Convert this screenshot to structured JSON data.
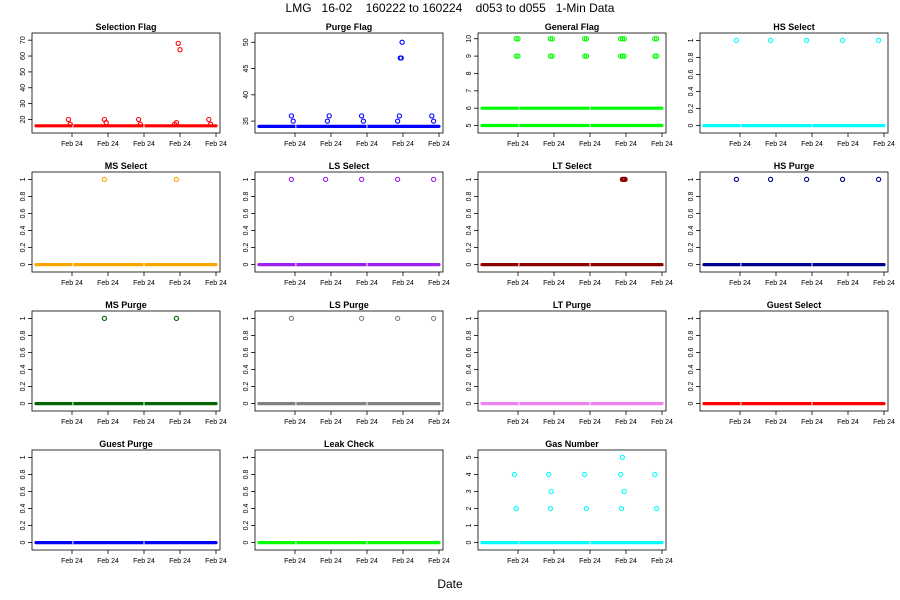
{
  "figure": {
    "title": "LMG   16-02    160222 to 160224    d053 to d055   1-Min Data",
    "xlabel": "Date"
  },
  "chart_data": [
    {
      "type": "scatter",
      "title": "Selection Flag",
      "color": "#ff0000",
      "ylim": [
        14,
        72
      ],
      "yticks": [
        20,
        30,
        40,
        50,
        60,
        70
      ],
      "xtick_label": "Feb 24",
      "xticks": [
        0.2,
        0.4,
        0.6,
        0.8,
        1.0
      ],
      "base": 16,
      "points": [
        [
          0.18,
          20
        ],
        [
          0.19,
          17
        ],
        [
          0.38,
          20
        ],
        [
          0.39,
          18
        ],
        [
          0.57,
          20
        ],
        [
          0.58,
          17
        ],
        [
          0.77,
          17
        ],
        [
          0.78,
          18
        ],
        [
          0.79,
          68
        ],
        [
          0.8,
          64
        ],
        [
          0.96,
          20
        ],
        [
          0.97,
          17
        ]
      ]
    },
    {
      "type": "scatter",
      "title": "Purge Flag",
      "color": "#0000ff",
      "ylim": [
        33.5,
        51
      ],
      "yticks": [
        35,
        40,
        45,
        50
      ],
      "xtick_label": "Feb 24",
      "xticks": [
        0.2,
        0.4,
        0.6,
        0.8,
        1.0
      ],
      "base": 34,
      "points": [
        [
          0.18,
          36
        ],
        [
          0.19,
          35
        ],
        [
          0.38,
          35
        ],
        [
          0.39,
          36
        ],
        [
          0.57,
          36
        ],
        [
          0.58,
          35
        ],
        [
          0.77,
          35
        ],
        [
          0.78,
          36
        ],
        [
          0.785,
          47
        ],
        [
          0.79,
          47
        ],
        [
          0.795,
          50
        ],
        [
          0.96,
          36
        ],
        [
          0.97,
          35
        ]
      ]
    },
    {
      "type": "scatter",
      "title": "General Flag",
      "color": "#00ff00",
      "ylim": [
        4.8,
        10.1
      ],
      "yticks": [
        5,
        6,
        7,
        8,
        9,
        10
      ],
      "xtick_label": "Feb 24",
      "xticks": [
        0.2,
        0.4,
        0.6,
        0.8,
        1.0
      ],
      "base": 5,
      "base2": 6,
      "points": [
        [
          0.19,
          9
        ],
        [
          0.2,
          9
        ],
        [
          0.19,
          10
        ],
        [
          0.2,
          10
        ],
        [
          0.38,
          9
        ],
        [
          0.39,
          9
        ],
        [
          0.38,
          10
        ],
        [
          0.39,
          10
        ],
        [
          0.57,
          9
        ],
        [
          0.58,
          9
        ],
        [
          0.57,
          10
        ],
        [
          0.58,
          10
        ],
        [
          0.77,
          9
        ],
        [
          0.78,
          9
        ],
        [
          0.79,
          9
        ],
        [
          0.77,
          10
        ],
        [
          0.78,
          10
        ],
        [
          0.79,
          10
        ],
        [
          0.96,
          9
        ],
        [
          0.97,
          9
        ],
        [
          0.96,
          10
        ],
        [
          0.97,
          10
        ]
      ]
    },
    {
      "type": "scatter",
      "title": "HS Select",
      "color": "#00ffff",
      "ylim": [
        -0.04,
        1.04
      ],
      "yticks": [
        0,
        0.2,
        0.4,
        0.6,
        0.8,
        1.0
      ],
      "xtick_label": "Feb 24",
      "xticks": [
        0.2,
        0.4,
        0.6,
        0.8,
        1.0
      ],
      "base": 0,
      "points": [
        [
          0.18,
          1
        ],
        [
          0.37,
          1
        ],
        [
          0.57,
          1
        ],
        [
          0.77,
          1
        ],
        [
          0.97,
          1
        ]
      ]
    },
    {
      "type": "scatter",
      "title": "MS Select",
      "color": "#ffa500",
      "ylim": [
        -0.04,
        1.04
      ],
      "yticks": [
        0,
        0.2,
        0.4,
        0.6,
        0.8,
        1.0
      ],
      "xtick_label": "Feb 24",
      "xticks": [
        0.2,
        0.4,
        0.6,
        0.8,
        1.0
      ],
      "base": 0,
      "points": [
        [
          0.38,
          1
        ],
        [
          0.78,
          1
        ]
      ]
    },
    {
      "type": "scatter",
      "title": "LS Select",
      "color": "#a020f0",
      "ylim": [
        -0.04,
        1.04
      ],
      "yticks": [
        0,
        0.2,
        0.4,
        0.6,
        0.8,
        1.0
      ],
      "xtick_label": "Feb 24",
      "xticks": [
        0.2,
        0.4,
        0.6,
        0.8,
        1.0
      ],
      "base": 0,
      "points": [
        [
          0.18,
          1
        ],
        [
          0.37,
          1
        ],
        [
          0.57,
          1
        ],
        [
          0.77,
          1
        ],
        [
          0.97,
          1
        ]
      ]
    },
    {
      "type": "scatter",
      "title": "LT Select",
      "color": "#8b0000",
      "ylim": [
        -0.04,
        1.04
      ],
      "yticks": [
        0,
        0.2,
        0.4,
        0.6,
        0.8,
        1.0
      ],
      "xtick_label": "Feb 24",
      "xticks": [
        0.2,
        0.4,
        0.6,
        0.8,
        1.0
      ],
      "base": 0,
      "points": [
        [
          0.78,
          1
        ],
        [
          0.785,
          1
        ],
        [
          0.79,
          1
        ],
        [
          0.795,
          1
        ]
      ]
    },
    {
      "type": "scatter",
      "title": "HS Purge",
      "color": "#00008b",
      "ylim": [
        -0.04,
        1.04
      ],
      "yticks": [
        0,
        0.2,
        0.4,
        0.6,
        0.8,
        1.0
      ],
      "xtick_label": "Feb 24",
      "xticks": [
        0.2,
        0.4,
        0.6,
        0.8,
        1.0
      ],
      "base": 0,
      "points": [
        [
          0.18,
          1
        ],
        [
          0.37,
          1
        ],
        [
          0.57,
          1
        ],
        [
          0.77,
          1
        ],
        [
          0.97,
          1
        ]
      ]
    },
    {
      "type": "scatter",
      "title": "MS Purge",
      "color": "#006400",
      "ylim": [
        -0.04,
        1.04
      ],
      "yticks": [
        0,
        0.2,
        0.4,
        0.6,
        0.8,
        1.0
      ],
      "xtick_label": "Feb 24",
      "xticks": [
        0.2,
        0.4,
        0.6,
        0.8,
        1.0
      ],
      "base": 0,
      "points": [
        [
          0.38,
          1
        ],
        [
          0.78,
          1
        ]
      ]
    },
    {
      "type": "scatter",
      "title": "LS Purge",
      "color": "#808080",
      "ylim": [
        -0.04,
        1.04
      ],
      "yticks": [
        0,
        0.2,
        0.4,
        0.6,
        0.8,
        1.0
      ],
      "xtick_label": "Feb 24",
      "xticks": [
        0.2,
        0.4,
        0.6,
        0.8,
        1.0
      ],
      "base": 0,
      "points": [
        [
          0.18,
          1
        ],
        [
          0.57,
          1
        ],
        [
          0.77,
          1
        ],
        [
          0.97,
          1
        ]
      ]
    },
    {
      "type": "scatter",
      "title": "LT Purge",
      "color": "#ee82ee",
      "ylim": [
        -0.04,
        1.04
      ],
      "yticks": [
        0,
        0.2,
        0.4,
        0.6,
        0.8,
        1.0
      ],
      "xtick_label": "Feb 24",
      "xticks": [
        0.2,
        0.4,
        0.6,
        0.8,
        1.0
      ],
      "base": 0,
      "points": []
    },
    {
      "type": "scatter",
      "title": "Guest Select",
      "color": "#ff0000",
      "ylim": [
        -0.04,
        1.04
      ],
      "yticks": [
        0,
        0.2,
        0.4,
        0.6,
        0.8,
        1.0
      ],
      "xtick_label": "Feb 24",
      "xticks": [
        0.2,
        0.4,
        0.6,
        0.8,
        1.0
      ],
      "base": 0,
      "points": []
    },
    {
      "type": "scatter",
      "title": "Guest Purge",
      "color": "#0000ff",
      "ylim": [
        -0.04,
        1.04
      ],
      "yticks": [
        0,
        0.2,
        0.4,
        0.6,
        0.8,
        1.0
      ],
      "xtick_label": "Feb 24",
      "xticks": [
        0.2,
        0.4,
        0.6,
        0.8,
        1.0
      ],
      "base": 0,
      "points": []
    },
    {
      "type": "scatter",
      "title": "Leak Check",
      "color": "#00ff00",
      "ylim": [
        -0.04,
        1.04
      ],
      "yticks": [
        0,
        0.2,
        0.4,
        0.6,
        0.8,
        1.0
      ],
      "xtick_label": "Feb 24",
      "xticks": [
        0.2,
        0.4,
        0.6,
        0.8,
        1.0
      ],
      "base": 0,
      "points": []
    },
    {
      "type": "scatter",
      "title": "Gas Number",
      "color": "#00ffff",
      "ylim": [
        -0.2,
        5.2
      ],
      "yticks": [
        0,
        1,
        2,
        3,
        4,
        5
      ],
      "xtick_label": "Feb 24",
      "xticks": [
        0.2,
        0.4,
        0.6,
        0.8,
        1.0
      ],
      "base": 0,
      "points": [
        [
          0.18,
          4
        ],
        [
          0.19,
          2
        ],
        [
          0.37,
          4
        ],
        [
          0.38,
          2
        ],
        [
          0.385,
          3
        ],
        [
          0.57,
          4
        ],
        [
          0.58,
          2
        ],
        [
          0.77,
          4
        ],
        [
          0.775,
          2
        ],
        [
          0.78,
          5
        ],
        [
          0.79,
          3
        ],
        [
          0.96,
          4
        ],
        [
          0.97,
          2
        ]
      ]
    }
  ]
}
